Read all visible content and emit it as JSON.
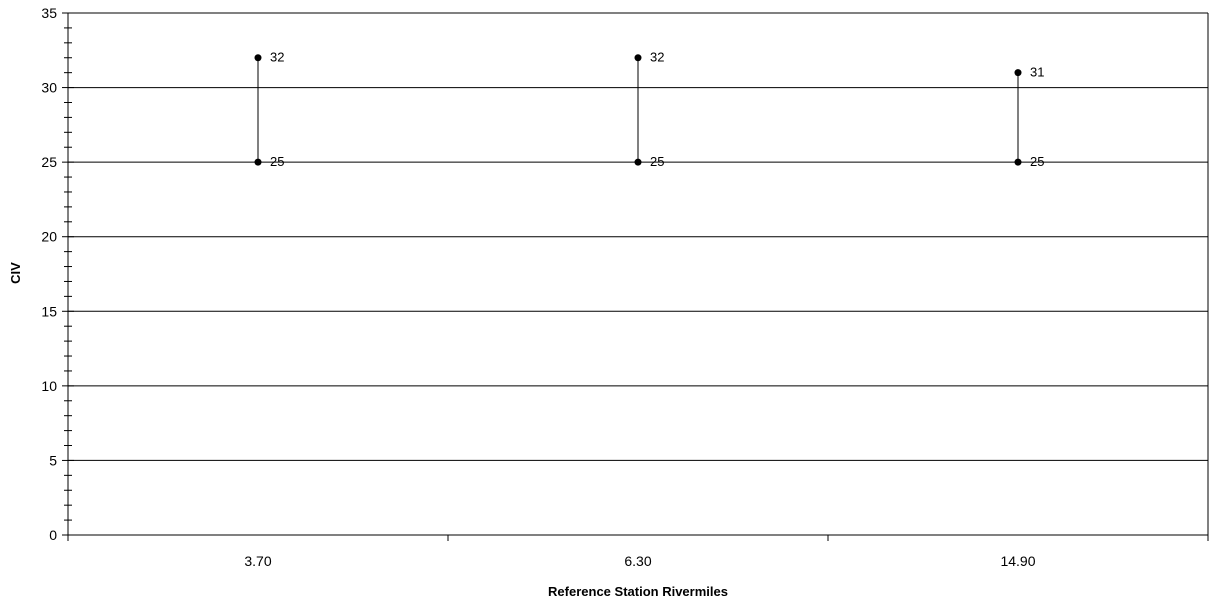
{
  "chart_data": {
    "type": "high-low",
    "xlabel": "Reference Station Rivermiles",
    "ylabel": "CIV",
    "ylim": [
      0,
      35
    ],
    "y_major_step": 5,
    "y_minor_step": 1,
    "grid": "horizontal major",
    "categories": [
      "3.70",
      "6.30",
      "14.90"
    ],
    "series": [
      {
        "values": [
          32,
          32,
          31
        ]
      },
      {
        "values": [
          25,
          25,
          25
        ]
      }
    ],
    "colors": {
      "line": "#000000",
      "background": "#ffffff"
    }
  }
}
